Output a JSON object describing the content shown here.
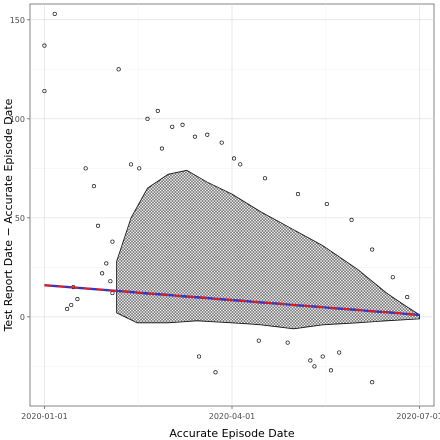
{
  "chart_data": {
    "type": "scatter",
    "title": "",
    "xlabel": "Accurate Episode Date",
    "ylabel": "Test Report Date − Accurate Episode Date",
    "x_axis": {
      "kind": "date",
      "range": [
        "2019-12-25",
        "2020-07-08"
      ],
      "ticks": [
        "2020-01-01",
        "2020-04-01",
        "2020-07-01"
      ]
    },
    "y_axis": {
      "range": [
        -45,
        158
      ],
      "ticks": [
        0,
        50,
        100,
        150
      ]
    },
    "grid": true,
    "legend": "none",
    "points": [
      {
        "x": "2020-01-01",
        "y": 137
      },
      {
        "x": "2020-01-01",
        "y": 114
      },
      {
        "x": "2020-01-06",
        "y": 153
      },
      {
        "x": "2020-02-06",
        "y": 125
      },
      {
        "x": "2020-01-21",
        "y": 75
      },
      {
        "x": "2020-01-25",
        "y": 66
      },
      {
        "x": "2020-01-15",
        "y": 15
      },
      {
        "x": "2020-01-17",
        "y": 9
      },
      {
        "x": "2020-01-14",
        "y": 6
      },
      {
        "x": "2020-01-12",
        "y": 4
      },
      {
        "x": "2020-01-27",
        "y": 46
      },
      {
        "x": "2020-02-03",
        "y": 38
      },
      {
        "x": "2020-01-29",
        "y": 22
      },
      {
        "x": "2020-02-02",
        "y": 18
      },
      {
        "x": "2020-01-31",
        "y": 27
      },
      {
        "x": "2020-02-03",
        "y": 12
      },
      {
        "x": "2020-02-12",
        "y": 77
      },
      {
        "x": "2020-02-20",
        "y": 100
      },
      {
        "x": "2020-02-25",
        "y": 104
      },
      {
        "x": "2020-03-03",
        "y": 96
      },
      {
        "x": "2020-03-08",
        "y": 97
      },
      {
        "x": "2020-03-14",
        "y": 91
      },
      {
        "x": "2020-03-20",
        "y": 92
      },
      {
        "x": "2020-03-27",
        "y": 88
      },
      {
        "x": "2020-04-02",
        "y": 80
      },
      {
        "x": "2020-02-16",
        "y": 75
      },
      {
        "x": "2020-02-27",
        "y": 85
      },
      {
        "x": "2020-03-16",
        "y": -20
      },
      {
        "x": "2020-03-24",
        "y": -28
      },
      {
        "x": "2020-05-09",
        "y": -22
      },
      {
        "x": "2020-05-11",
        "y": -25
      },
      {
        "x": "2020-05-19",
        "y": -27
      },
      {
        "x": "2020-06-08",
        "y": -33
      },
      {
        "x": "2020-05-15",
        "y": -20
      },
      {
        "x": "2020-04-14",
        "y": -12
      },
      {
        "x": "2020-04-28",
        "y": -13
      },
      {
        "x": "2020-05-23",
        "y": -18
      },
      {
        "x": "2020-04-05",
        "y": 77
      },
      {
        "x": "2020-04-17",
        "y": 70
      },
      {
        "x": "2020-05-03",
        "y": 62
      },
      {
        "x": "2020-05-17",
        "y": 57
      },
      {
        "x": "2020-05-29",
        "y": 49
      },
      {
        "x": "2020-06-08",
        "y": 34
      },
      {
        "x": "2020-06-18",
        "y": 20
      },
      {
        "x": "2020-06-25",
        "y": 10
      }
    ],
    "cloud_envelope": {
      "upper": [
        [
          "2020-02-05",
          28
        ],
        [
          "2020-02-12",
          50
        ],
        [
          "2020-02-20",
          65
        ],
        [
          "2020-03-01",
          72
        ],
        [
          "2020-03-10",
          74
        ],
        [
          "2020-03-20",
          68
        ],
        [
          "2020-04-01",
          62
        ],
        [
          "2020-04-15",
          53
        ],
        [
          "2020-05-01",
          44
        ],
        [
          "2020-05-15",
          36
        ],
        [
          "2020-06-01",
          24
        ],
        [
          "2020-06-15",
          12
        ],
        [
          "2020-06-25",
          5
        ],
        [
          "2020-07-01",
          1
        ]
      ],
      "lower": [
        [
          "2020-07-01",
          -1
        ],
        [
          "2020-06-15",
          -2
        ],
        [
          "2020-06-01",
          -3
        ],
        [
          "2020-05-15",
          -4
        ],
        [
          "2020-05-01",
          -6
        ],
        [
          "2020-04-15",
          -4
        ],
        [
          "2020-04-01",
          -3
        ],
        [
          "2020-03-15",
          -2
        ],
        [
          "2020-03-01",
          -3
        ],
        [
          "2020-02-15",
          -3
        ],
        [
          "2020-02-05",
          2
        ]
      ]
    },
    "trend_lines": [
      {
        "color": "#1f3bd9",
        "style": "solid",
        "x": [
          "2020-01-01",
          "2020-07-01"
        ],
        "y": [
          16,
          1
        ]
      },
      {
        "color": "#e41a1c",
        "style": "dashed",
        "x": [
          "2020-01-01",
          "2020-07-01"
        ],
        "y": [
          16,
          1
        ]
      }
    ]
  }
}
